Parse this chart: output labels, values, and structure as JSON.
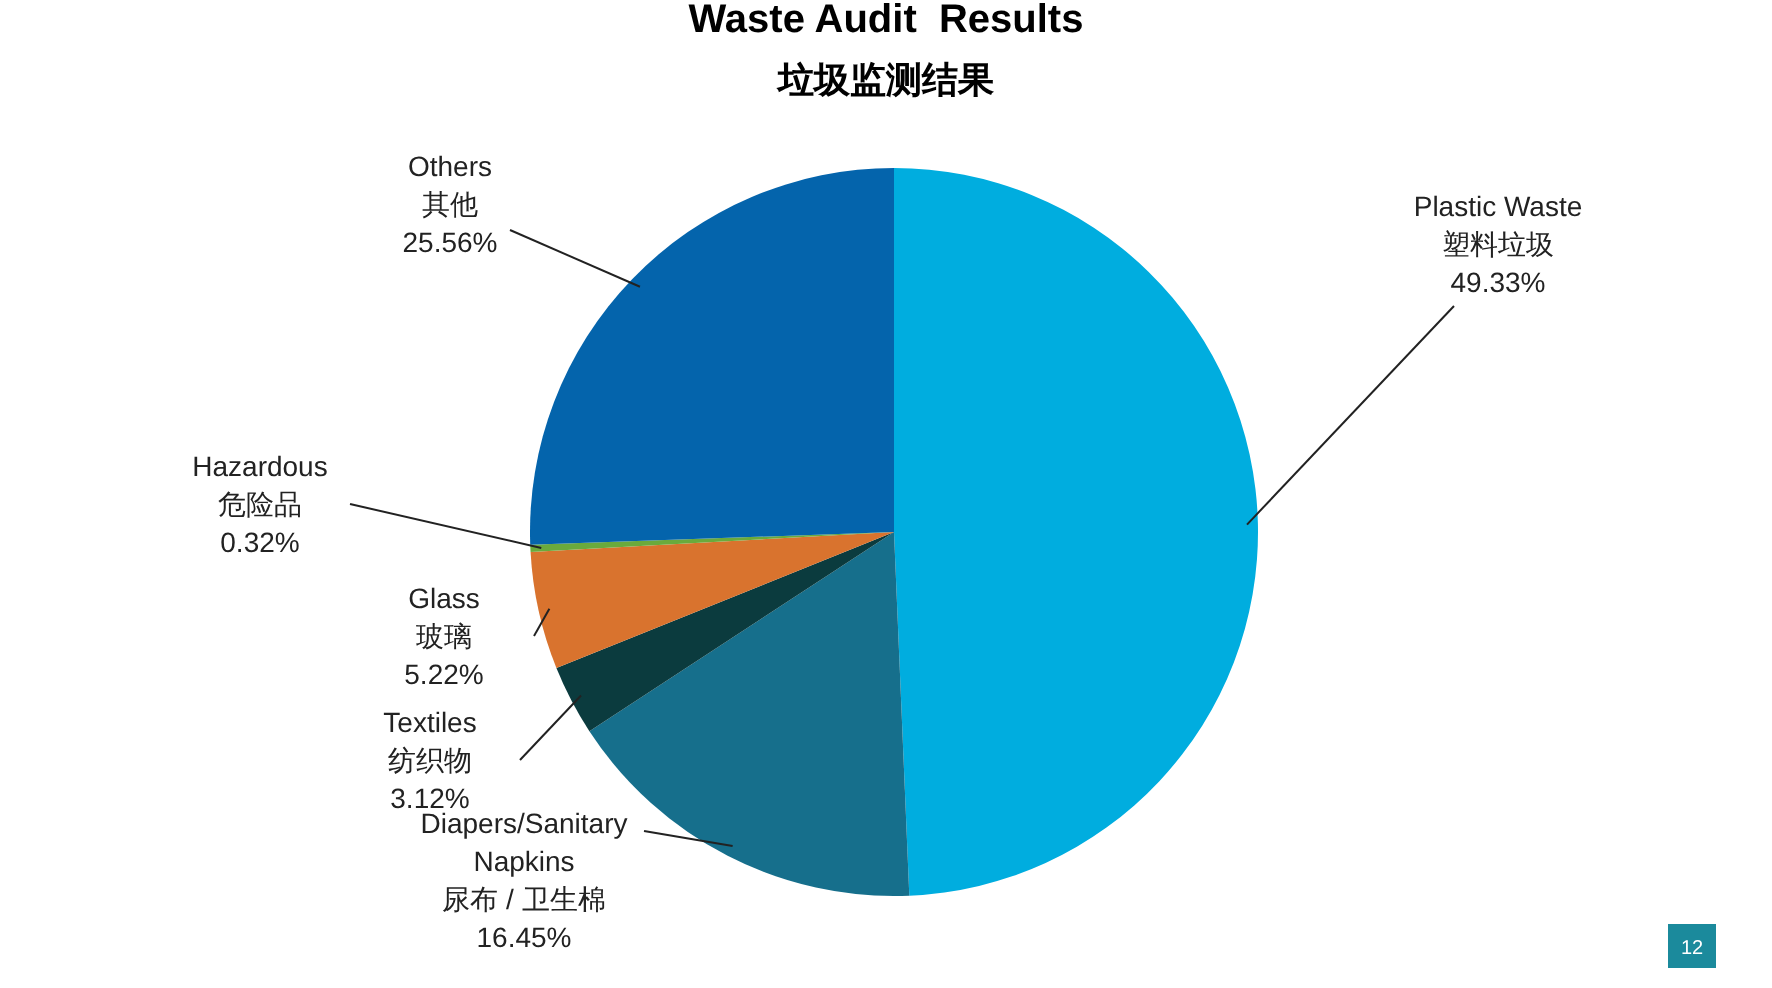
{
  "chart_data": {
    "type": "pie",
    "title": "Waste Audit  Results",
    "subtitle": "垃圾监测结果",
    "categories": [
      "Plastic Waste\n塑料垃圾",
      "Diapers/Sanitary\nNapkins\n尿布 / 卫生棉",
      "Textiles\n纺织物",
      "Glass\n玻璃",
      "Hazardous\n危险品",
      "Others\n其他"
    ],
    "values": [
      49.33,
      16.45,
      3.12,
      5.22,
      0.32,
      25.56
    ],
    "value_labels": [
      "49.33%",
      "16.45%",
      "3.12%",
      "5.22%",
      "0.32%",
      "25.56%"
    ],
    "colors": [
      "#00addf",
      "#166f8c",
      "#0b3b3e",
      "#d9732e",
      "#6aaa3c",
      "#0464ac"
    ],
    "annotations": [
      "12"
    ]
  }
}
